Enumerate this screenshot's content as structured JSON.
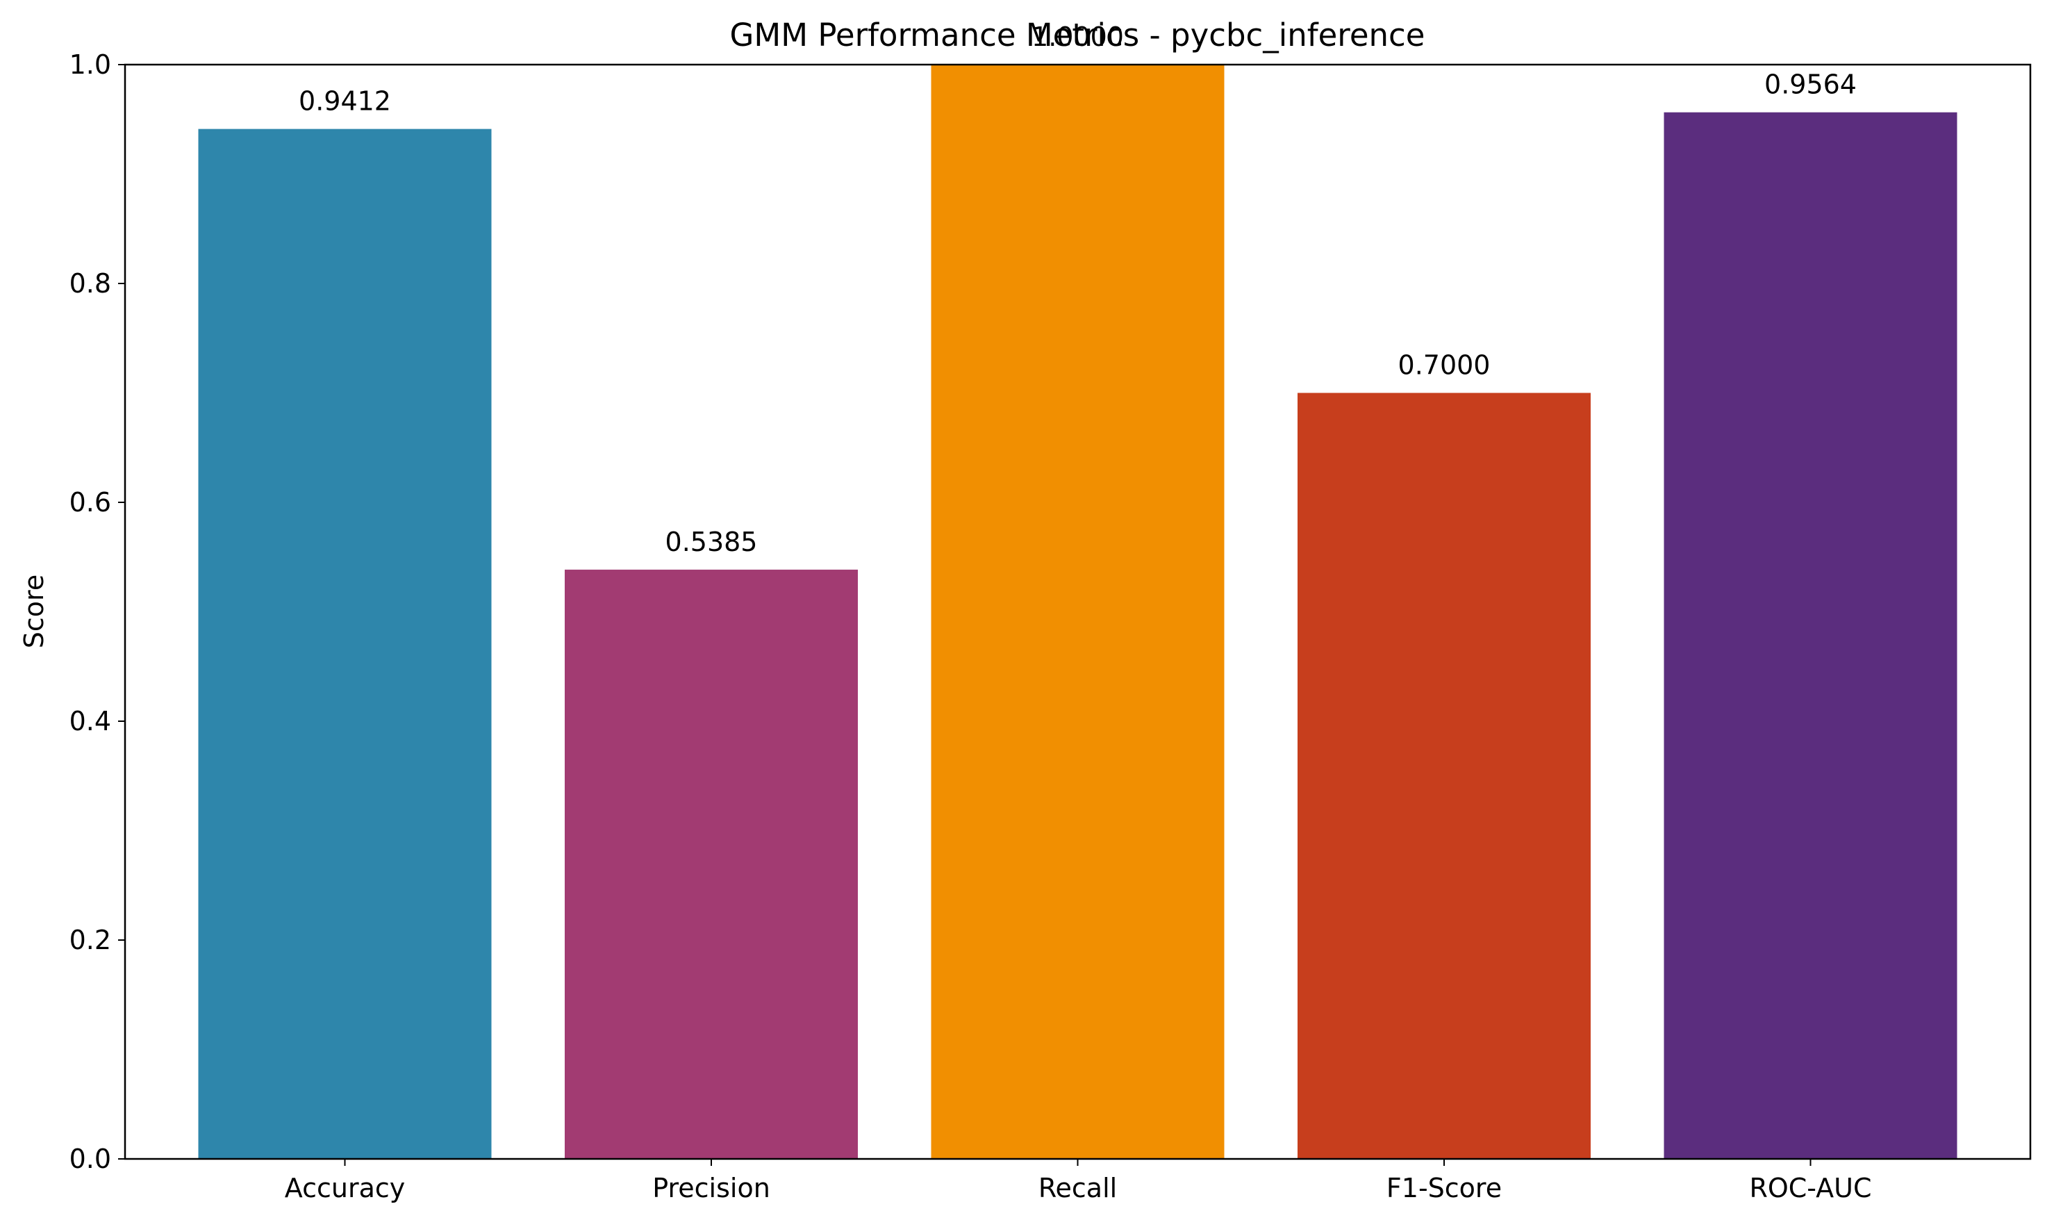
{
  "chart_data": {
    "type": "bar",
    "title": "GMM Performance Metrics - pycbc_inference",
    "xlabel": "",
    "ylabel": "Score",
    "categories": [
      "Accuracy",
      "Precision",
      "Recall",
      "F1-Score",
      "ROC-AUC"
    ],
    "values": [
      0.9412,
      0.5385,
      1.0,
      0.7,
      0.9564
    ],
    "value_labels": [
      "0.9412",
      "0.5385",
      "1.0000",
      "0.7000",
      "0.9564"
    ],
    "colors": [
      "#2e86ab",
      "#a23b72",
      "#f18f01",
      "#c73e1d",
      "#5b2d7e"
    ],
    "ylim": [
      0,
      1.0
    ],
    "yticks": [
      0.0,
      0.2,
      0.4,
      0.6,
      0.8,
      1.0
    ],
    "ytick_labels": [
      "0.0",
      "0.2",
      "0.4",
      "0.6",
      "0.8",
      "1.0"
    ],
    "grid": false,
    "legend": "none"
  }
}
